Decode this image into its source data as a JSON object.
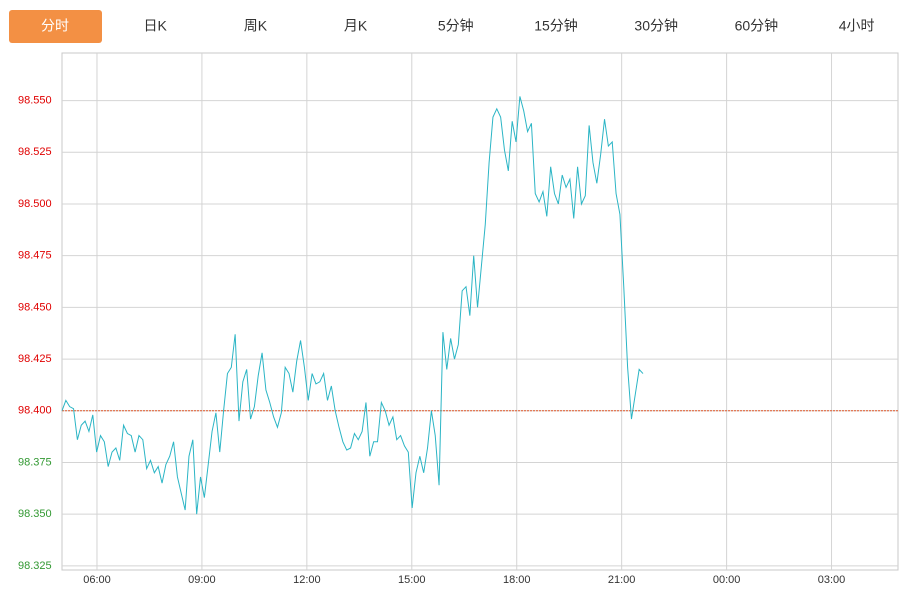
{
  "tabs": [
    "分时",
    "日K",
    "周K",
    "月K",
    "5分钟",
    "15分钟",
    "30分钟",
    "60分钟",
    "4小时"
  ],
  "active_tab": 0,
  "chart_data": {
    "type": "line",
    "color": "#2bb5c5",
    "baseline": 98.4,
    "baseline_color": "#e0582a",
    "up_color": "#e00000",
    "down_color": "#339933",
    "grid": true,
    "xlim": [
      5,
      28.9
    ],
    "ylim": [
      98.323,
      98.573
    ],
    "xticks": [
      {
        "value": 6,
        "label": "06:00"
      },
      {
        "value": 9,
        "label": "09:00"
      },
      {
        "value": 12,
        "label": "12:00"
      },
      {
        "value": 15,
        "label": "15:00"
      },
      {
        "value": 18,
        "label": "18:00"
      },
      {
        "value": 21,
        "label": "21:00"
      },
      {
        "value": 24,
        "label": "00:00"
      },
      {
        "value": 27,
        "label": "03:00"
      }
    ],
    "yticks": [
      {
        "value": 98.325,
        "label": "98.325"
      },
      {
        "value": 98.35,
        "label": "98.350"
      },
      {
        "value": 98.375,
        "label": "98.375"
      },
      {
        "value": 98.4,
        "label": "98.400"
      },
      {
        "value": 98.425,
        "label": "98.425"
      },
      {
        "value": 98.45,
        "label": "98.450"
      },
      {
        "value": 98.475,
        "label": "98.475"
      },
      {
        "value": 98.5,
        "label": "98.500"
      },
      {
        "value": 98.525,
        "label": "98.525"
      },
      {
        "value": 98.55,
        "label": "98.550"
      }
    ],
    "x": [
      5,
      5.11,
      5.22,
      5.33,
      5.44,
      5.55,
      5.66,
      5.77,
      5.88,
      5.99,
      6.1,
      6.21,
      6.32,
      6.43,
      6.54,
      6.65,
      6.76,
      6.87,
      6.98,
      7.09,
      7.2,
      7.31,
      7.42,
      7.53,
      7.64,
      7.75,
      7.86,
      7.97,
      8.08,
      8.19,
      8.3,
      8.41,
      8.52,
      8.63,
      8.74,
      8.85,
      8.96,
      9.07,
      9.18,
      9.29,
      9.4,
      9.51,
      9.62,
      9.73,
      9.84,
      9.95,
      10.06,
      10.17,
      10.28,
      10.39,
      10.5,
      10.61,
      10.72,
      10.83,
      10.94,
      11.05,
      11.16,
      11.27,
      11.38,
      11.49,
      11.6,
      11.71,
      11.82,
      11.93,
      12.04,
      12.15,
      12.26,
      12.37,
      12.48,
      12.59,
      12.7,
      12.81,
      12.92,
      13.03,
      13.14,
      13.25,
      13.36,
      13.47,
      13.58,
      13.69,
      13.8,
      13.91,
      14.02,
      14.13,
      14.24,
      14.35,
      14.46,
      14.57,
      14.68,
      14.79,
      14.9,
      15.01,
      15.12,
      15.23,
      15.34,
      15.45,
      15.56,
      15.67,
      15.78,
      15.89,
      16,
      16.11,
      16.22,
      16.33,
      16.44,
      16.55,
      16.66,
      16.77,
      16.88,
      16.99,
      17.1,
      17.21,
      17.32,
      17.43,
      17.54,
      17.65,
      17.76,
      17.87,
      17.98,
      18.09,
      18.2,
      18.31,
      18.42,
      18.53,
      18.64,
      18.75,
      18.86,
      18.97,
      19.08,
      19.19,
      19.3,
      19.41,
      19.52,
      19.63,
      19.74,
      19.85,
      19.96,
      20.07,
      20.18,
      20.29,
      20.4,
      20.51,
      20.62,
      20.73,
      20.84,
      20.95,
      21.06,
      21.17,
      21.28,
      21.39,
      21.5,
      21.61
    ],
    "values": [
      98.4,
      98.405,
      98.402,
      98.401,
      98.386,
      98.393,
      98.395,
      98.39,
      98.398,
      98.38,
      98.388,
      98.385,
      98.373,
      98.38,
      98.382,
      98.376,
      98.393,
      98.389,
      98.388,
      98.38,
      98.388,
      98.386,
      98.372,
      98.376,
      98.37,
      98.373,
      98.365,
      98.374,
      98.378,
      98.385,
      98.368,
      98.36,
      98.352,
      98.378,
      98.386,
      98.35,
      98.368,
      98.358,
      98.374,
      98.39,
      98.399,
      98.38,
      98.4,
      98.418,
      98.421,
      98.437,
      98.395,
      98.414,
      98.42,
      98.396,
      98.402,
      98.417,
      98.428,
      98.41,
      98.404,
      98.397,
      98.392,
      98.399,
      98.421,
      98.418,
      98.409,
      98.424,
      98.434,
      98.421,
      98.405,
      98.418,
      98.413,
      98.414,
      98.418,
      98.405,
      98.412,
      98.4,
      98.392,
      98.385,
      98.381,
      98.382,
      98.389,
      98.386,
      98.39,
      98.404,
      98.378,
      98.385,
      98.385,
      98.404,
      98.4,
      98.393,
      98.397,
      98.386,
      98.388,
      98.383,
      98.38,
      98.353,
      98.37,
      98.378,
      98.37,
      98.382,
      98.4,
      98.388,
      98.364,
      98.438,
      98.42,
      98.435,
      98.425,
      98.432,
      98.458,
      98.46,
      98.446,
      98.475,
      98.45,
      98.47,
      98.49,
      98.52,
      98.542,
      98.546,
      98.542,
      98.526,
      98.516,
      98.54,
      98.53,
      98.552,
      98.545,
      98.535,
      98.539,
      98.505,
      98.501,
      98.506,
      98.494,
      98.518,
      98.505,
      98.5,
      98.514,
      98.508,
      98.512,
      98.493,
      98.518,
      98.5,
      98.504,
      98.538,
      98.52,
      98.51,
      98.524,
      98.541,
      98.528,
      98.53,
      98.505,
      98.495,
      98.46,
      98.421,
      98.396,
      98.408,
      98.42,
      98.418
    ]
  }
}
